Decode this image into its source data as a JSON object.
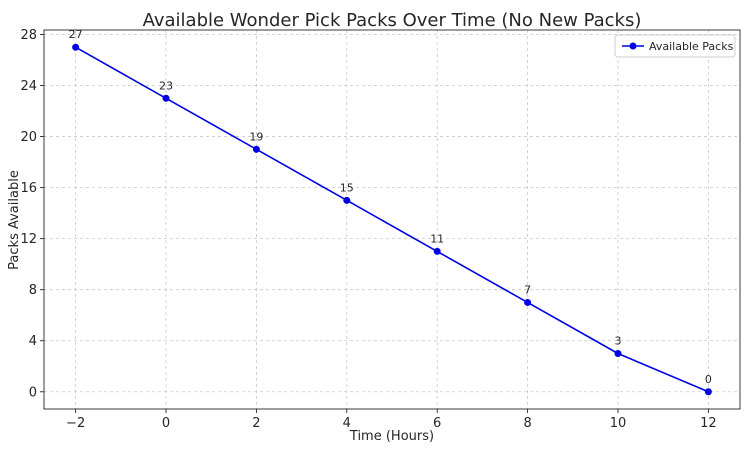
{
  "chart_data": {
    "type": "line",
    "title": "Available Wonder Pick Packs Over Time (No New Packs)",
    "xlabel": "Time (Hours)",
    "ylabel": "Packs Available",
    "x": [
      -2,
      0,
      2,
      4,
      6,
      8,
      10,
      12
    ],
    "series": [
      {
        "name": "Available Packs",
        "values": [
          27,
          23,
          19,
          15,
          11,
          7,
          3,
          0
        ],
        "data_labels": [
          "27",
          "23",
          "19",
          "15",
          "11",
          "7",
          "3",
          "0"
        ],
        "color": "#0000e6",
        "marker": "circle"
      }
    ],
    "xlim": [
      -2.7,
      12.7
    ],
    "ylim": [
      -1.35,
      28.35
    ],
    "xticks": [
      -2,
      0,
      2,
      4,
      6,
      8,
      10,
      12
    ],
    "xtick_labels": [
      "−2",
      "0",
      "2",
      "4",
      "6",
      "8",
      "10",
      "12"
    ],
    "yticks": [
      0,
      4,
      8,
      12,
      16,
      20,
      24,
      28
    ],
    "ytick_labels": [
      "0",
      "4",
      "8",
      "12",
      "16",
      "20",
      "24",
      "28"
    ],
    "grid": true,
    "legend": "top-right"
  }
}
